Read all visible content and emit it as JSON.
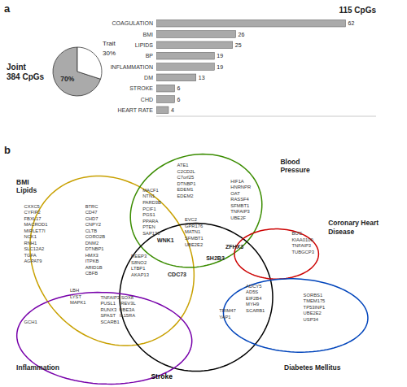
{
  "chart_data": [
    {
      "type": "pie",
      "title": "Joint\n384 CpGs",
      "categories": [
        null,
        "Trait"
      ],
      "values": [
        70,
        30
      ],
      "value_labels": [
        "70%",
        "30%"
      ],
      "colors": [
        "#aaaaaa",
        "#ffffff"
      ],
      "data_labels": true,
      "annotations": [
        "a"
      ]
    },
    {
      "type": "bar",
      "orientation": "horizontal",
      "title": "115 CpGs",
      "categories": [
        "COAGULATION",
        "BMI",
        "LIPIDS",
        "BP",
        "INFLAMMATION",
        "DM",
        "STROKE",
        "CHD",
        "HEART RATE"
      ],
      "values": [
        62,
        26,
        25,
        19,
        19,
        13,
        6,
        6,
        4
      ],
      "color": "#aaaaaa",
      "xlim": [
        0,
        72
      ],
      "data_labels": true,
      "tick_labels": "y",
      "grid": false
    },
    {
      "type": "venn",
      "annotations": [
        "b"
      ],
      "sets": [
        {
          "name": "BMI\nLipids",
          "color": "#c8a000"
        },
        {
          "name": "Blood\nPressure",
          "color": "#3a8c00"
        },
        {
          "name": "Stroke",
          "color": "#000000"
        },
        {
          "name": "Inflammation",
          "color": "#7700aa"
        },
        {
          "name": "Coronary Heart\nDisease",
          "color": "#cc0000"
        },
        {
          "name": "Diabetes Mellitus",
          "color": "#0044bb"
        }
      ],
      "regions": [
        "CXXC5\nCYFIP2\nFBXL17\nMACROD1\nMIRLET7I\nNCK1\nRNH1\nSLC12A2\nTGFA\nAGPAT9",
        "BTRC\nCD47\nCHD7\nCNPY2\nCLTB\nCORO2B\nDNM2\nDTNBP1\nHMX3\nITPKB\nARID1B\nCBFB",
        "MACF1\nNTN1\nPARD3B\nPCIF1\nPGS1\nPPARA\nPTEN\nSAP130",
        "ATE1\nC2CD2L\nC7orf25\nDTNBP1\nEDEM1\nEDEM2",
        "HIF1A\nHNRNPR\nOAT\nRASSF4\nSFMBT1\nTNFAIP3\nUBE2F",
        "EVC2\nGPR176\nMATN1\nSFMBT1\nUBE2E2",
        "REEP3\nS8NO2\nLTBP1\nAKAP13",
        "LBH\nLYST\nMAPK1",
        "TNFAIP3 SOX8\nPUSL1    REV3L\nRUNX3  UBE3A\nSPAST   IL15RA\nSCARB1",
        "GCH1",
        "WNK1",
        "CDC73",
        "ZFHX3",
        "SH2B3",
        "TRIM47\nYAP1",
        "BOC\nKIAA0100\nTNFAIP3\nTUBGCP3",
        "ADCY5\nAD5S\nEIF2B4\nMYH9\nSCARB1",
        "SORBS1\nTMEM175\nTP53INP1\nUBE2E2\nUSP34"
      ]
    }
  ]
}
